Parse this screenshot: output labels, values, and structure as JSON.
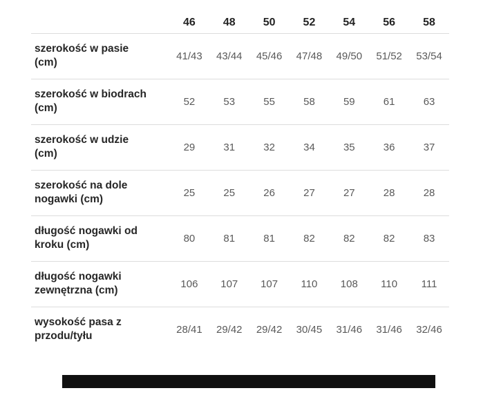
{
  "table": {
    "sizes": [
      "46",
      "48",
      "50",
      "52",
      "54",
      "56",
      "58"
    ],
    "rows": [
      {
        "label": "szerokość w pasie (cm)",
        "label_lines": [
          "szerokość w pasie",
          "(cm)"
        ],
        "values": [
          "41/43",
          "43/44",
          "45/46",
          "47/48",
          "49/50",
          "51/52",
          "53/54"
        ]
      },
      {
        "label": "szerokość w biodrach (cm)",
        "label_lines": [
          "szerokość w biodrach",
          "(cm)"
        ],
        "values": [
          "52",
          "53",
          "55",
          "58",
          "59",
          "61",
          "63"
        ]
      },
      {
        "label": "szerokość w udzie (cm)",
        "label_lines": [
          "szerokość w udzie",
          "(cm)"
        ],
        "values": [
          "29",
          "31",
          "32",
          "34",
          "35",
          "36",
          "37"
        ]
      },
      {
        "label": "szerokość na dole nogawki (cm)",
        "label_lines": [
          "szerokość na dole",
          "nogawki (cm)"
        ],
        "values": [
          "25",
          "25",
          "26",
          "27",
          "27",
          "28",
          "28"
        ]
      },
      {
        "label": "długość nogawki od kroku (cm)",
        "label_lines": [
          "długość nogawki od",
          "kroku (cm)"
        ],
        "values": [
          "80",
          "81",
          "81",
          "82",
          "82",
          "82",
          "83"
        ]
      },
      {
        "label": "długość nogawki zewnętrzna (cm)",
        "label_lines": [
          "długość nogawki",
          "zewnętrzna (cm)"
        ],
        "values": [
          "106",
          "107",
          "107",
          "110",
          "108",
          "110",
          "111"
        ]
      },
      {
        "label": "wysokość pasa z przodu/tyłu",
        "label_lines": [
          "wysokość pasa z",
          "przodu/tyłu"
        ],
        "values": [
          "28/41",
          "29/42",
          "29/42",
          "30/45",
          "31/46",
          "31/46",
          "32/46"
        ]
      }
    ]
  },
  "colors": {
    "header_text": "#232323",
    "label_text": "#262626",
    "value_text": "#595959",
    "divider": "#dcdcdc",
    "censor_bar": "#101010",
    "background": "#ffffff"
  }
}
